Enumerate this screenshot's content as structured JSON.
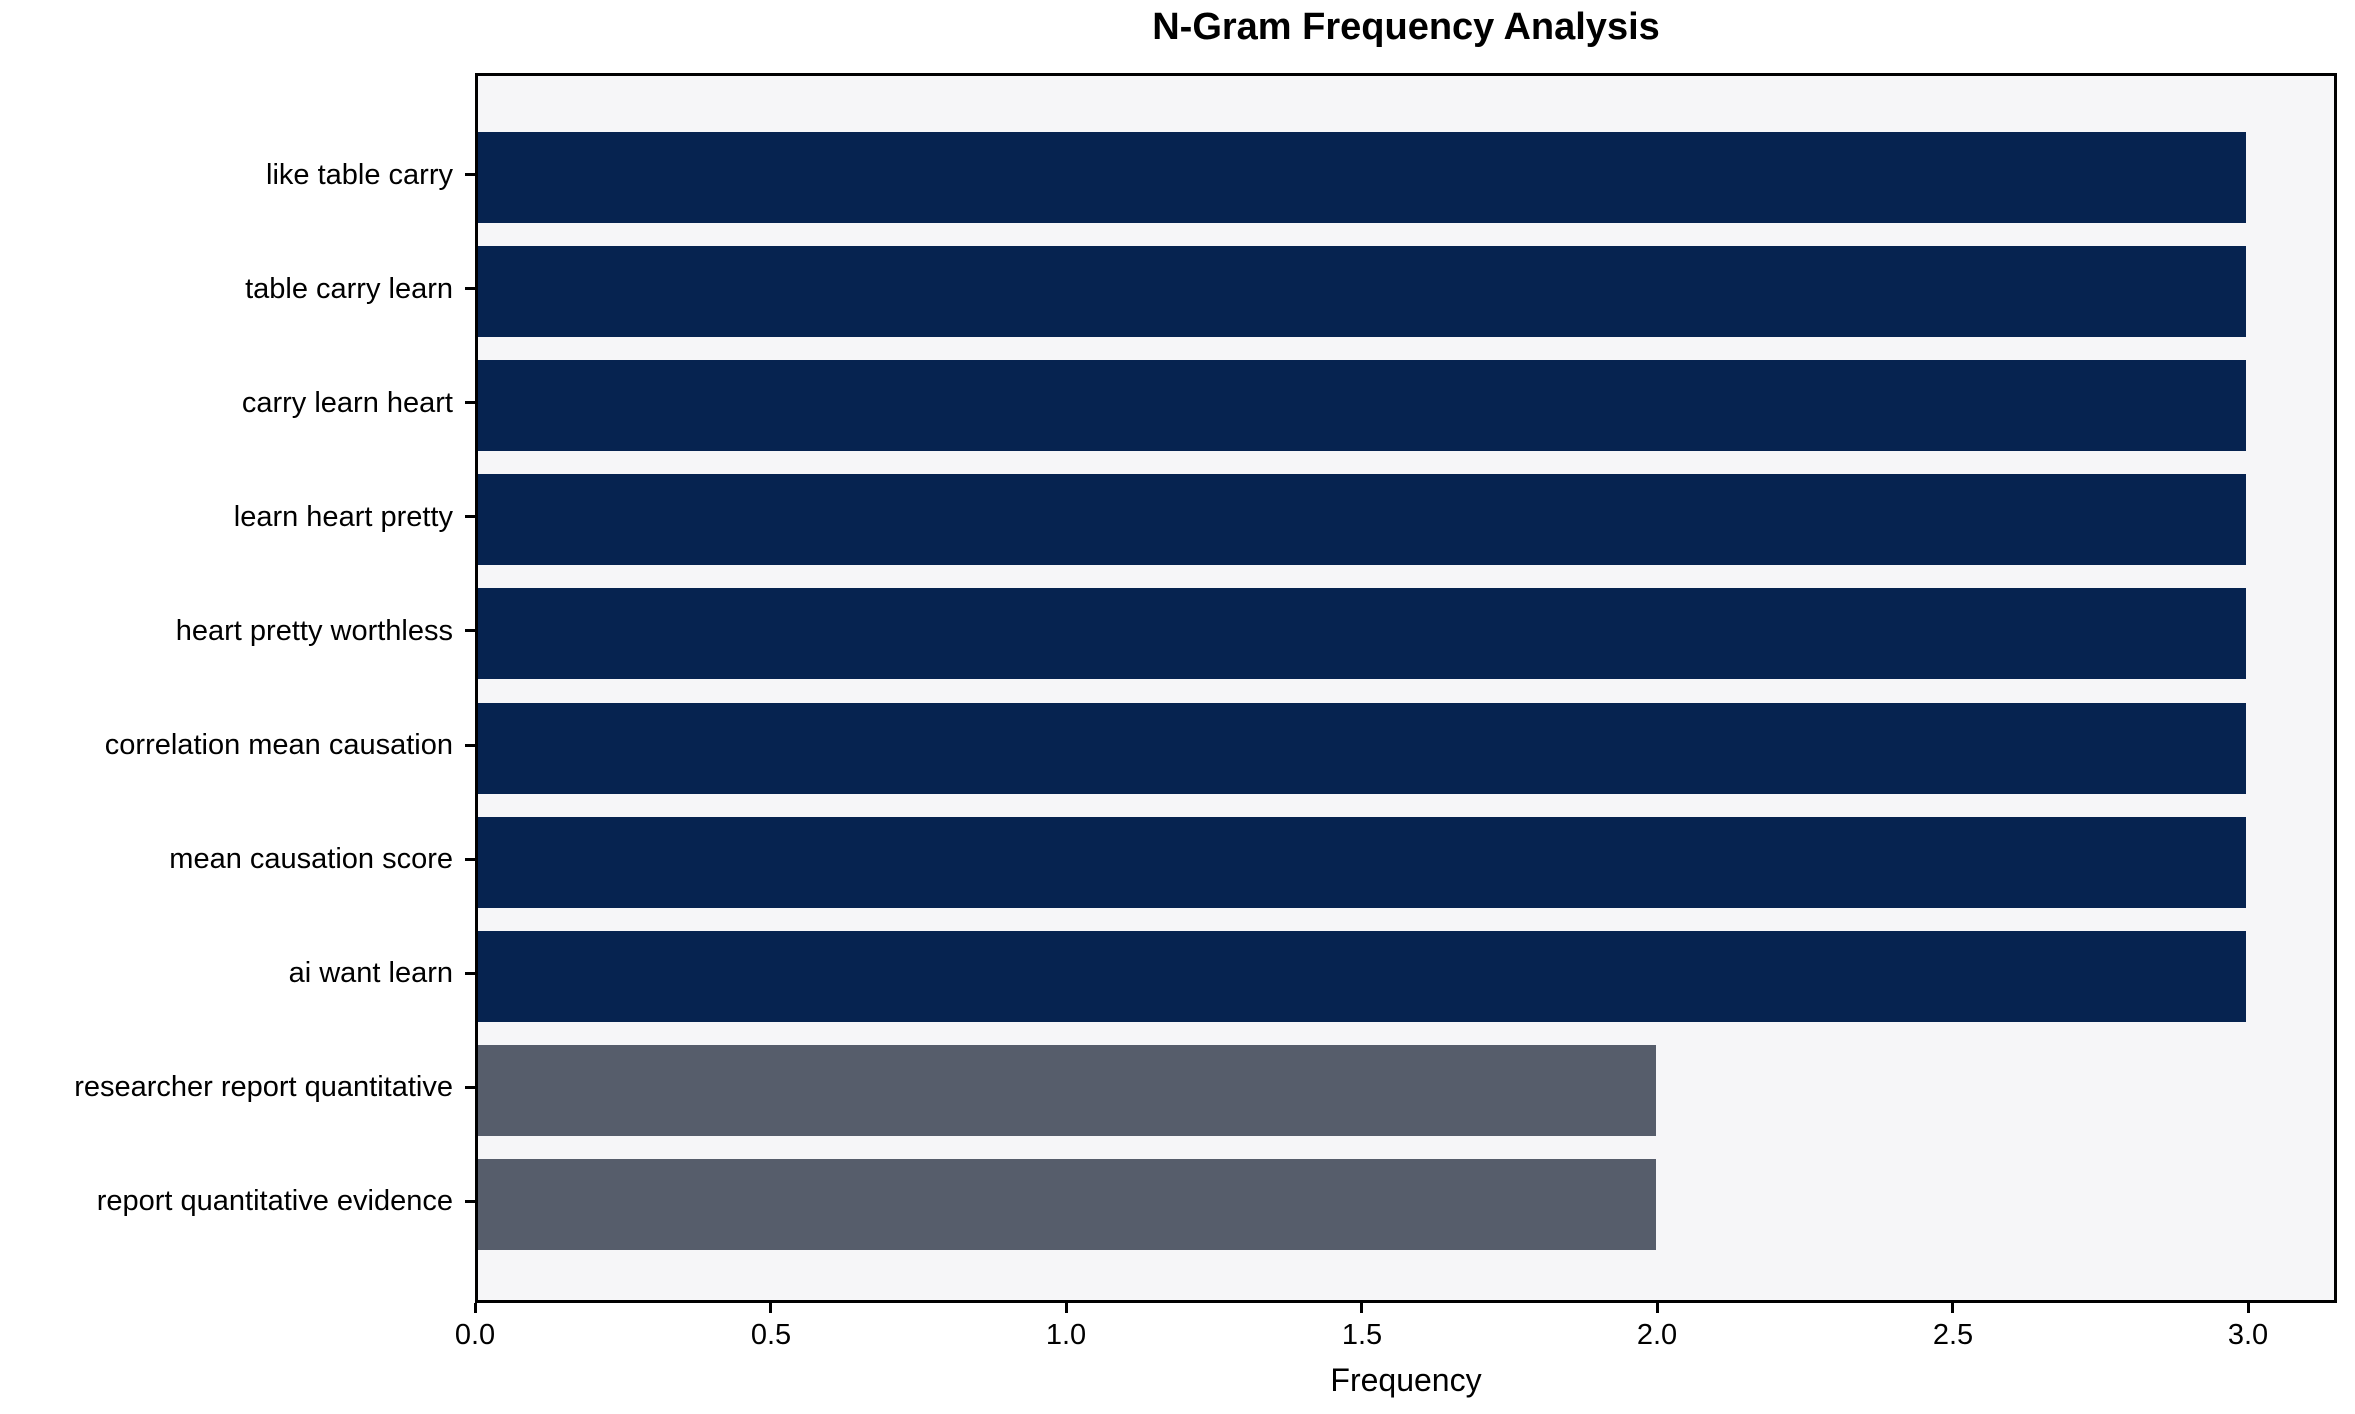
{
  "chart_data": {
    "type": "bar",
    "orientation": "horizontal",
    "title": "N-Gram Frequency Analysis",
    "xlabel": "Frequency",
    "ylabel": "",
    "categories": [
      "like table carry",
      "table carry learn",
      "carry learn heart",
      "learn heart pretty",
      "heart pretty worthless",
      "correlation mean causation",
      "mean causation score",
      "ai want learn",
      "researcher report quantitative",
      "report quantitative evidence"
    ],
    "values": [
      3,
      3,
      3,
      3,
      3,
      3,
      3,
      3,
      2,
      2
    ],
    "bar_colors": [
      "#062350",
      "#062350",
      "#062350",
      "#062350",
      "#062350",
      "#062350",
      "#062350",
      "#062350",
      "#565d6b",
      "#565d6b"
    ],
    "xlim": [
      0,
      3.15
    ],
    "xticks": [
      0.0,
      0.5,
      1.0,
      1.5,
      2.0,
      2.5,
      3.0
    ],
    "xtick_labels": [
      "0.0",
      "0.5",
      "1.0",
      "1.5",
      "2.0",
      "2.5",
      "3.0"
    ],
    "grid": false,
    "legend": null,
    "colors": {
      "bar_high": "#062350",
      "bar_low": "#565d6b",
      "plot_background": "#f6f6f8",
      "figure_background": "#ffffff",
      "axis": "#000000",
      "text": "#000000"
    }
  }
}
